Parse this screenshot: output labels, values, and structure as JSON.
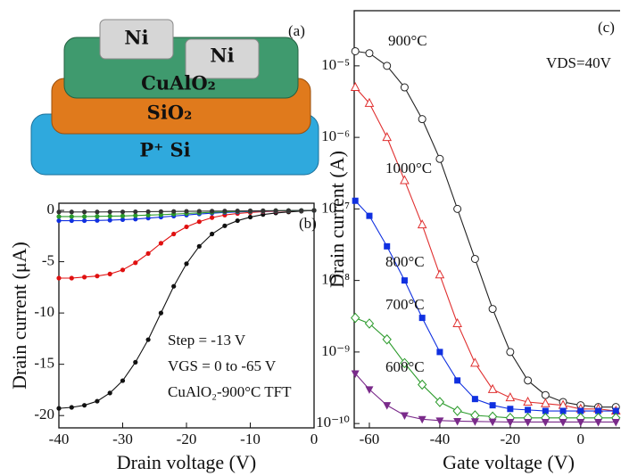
{
  "schematic": {
    "panel_label": "(a)",
    "layers": [
      "Ni",
      "Ni",
      "CuAlO₂",
      "SiO₂",
      "P⁺ Si"
    ]
  },
  "chart_data": [
    {
      "type": "line",
      "panel_label": "(b)",
      "x_label": "Drain voltage (V)",
      "y_label": "Drain current (μA)",
      "annotations": [
        "Step = -13 V",
        "VGS = 0 to -65 V",
        "CuAlO₂-900°C TFT"
      ],
      "x": [
        -40,
        -38,
        -36,
        -34,
        -32,
        -30,
        -28,
        -26,
        -24,
        -22,
        -20,
        -18,
        -16,
        -14,
        -12,
        -10,
        -8,
        -6,
        -4,
        -2,
        0
      ],
      "series": [
        {
          "color": "#111111",
          "marker": "dot",
          "values": [
            -19.3,
            -19.2,
            -19.0,
            -18.6,
            -17.8,
            -16.6,
            -14.8,
            -12.6,
            -10.0,
            -7.4,
            -5.2,
            -3.5,
            -2.3,
            -1.5,
            -1.0,
            -0.65,
            -0.4,
            -0.25,
            -0.15,
            -0.07,
            0
          ]
        },
        {
          "color": "#e01010",
          "marker": "dot",
          "values": [
            -6.6,
            -6.6,
            -6.5,
            -6.4,
            -6.2,
            -5.8,
            -5.1,
            -4.2,
            -3.2,
            -2.3,
            -1.6,
            -1.1,
            -0.7,
            -0.45,
            -0.3,
            -0.2,
            -0.12,
            -0.08,
            -0.05,
            -0.02,
            0
          ]
        },
        {
          "color": "#1030e0",
          "marker": "dot",
          "values": [
            -1.0,
            -1.0,
            -1.0,
            -0.98,
            -0.95,
            -0.9,
            -0.85,
            -0.75,
            -0.65,
            -0.55,
            -0.45,
            -0.35,
            -0.27,
            -0.2,
            -0.15,
            -0.1,
            -0.07,
            -0.05,
            -0.03,
            -0.01,
            0
          ]
        },
        {
          "color": "#2a9a2a",
          "marker": "dot",
          "values": [
            -0.6,
            -0.6,
            -0.6,
            -0.58,
            -0.56,
            -0.54,
            -0.5,
            -0.46,
            -0.42,
            -0.36,
            -0.3,
            -0.24,
            -0.18,
            -0.14,
            -0.1,
            -0.07,
            -0.05,
            -0.03,
            -0.02,
            -0.01,
            0
          ]
        },
        {
          "color": "#333333",
          "marker": "dot",
          "values": [
            -0.15,
            -0.15,
            -0.15,
            -0.15,
            -0.14,
            -0.14,
            -0.13,
            -0.12,
            -0.11,
            -0.1,
            -0.09,
            -0.08,
            -0.07,
            -0.06,
            -0.05,
            -0.04,
            -0.03,
            -0.02,
            -0.01,
            -0.01,
            0
          ]
        }
      ],
      "xlim": [
        -40,
        0
      ],
      "xticks": [
        -40,
        -30,
        -20,
        -10,
        0
      ],
      "ylim": [
        -21.2,
        0.7
      ],
      "yticks": [
        -20,
        -15,
        -10,
        -5,
        0
      ],
      "log_y": false
    },
    {
      "type": "line",
      "panel_label": "(c)",
      "x_label": "Gate voltage (V)",
      "y_label": "Drain current (A)",
      "annotations": [
        "VDS=40V"
      ],
      "x": [
        -64,
        -60,
        -55,
        -50,
        -45,
        -40,
        -35,
        -30,
        -25,
        -20,
        -15,
        -10,
        -5,
        0,
        5,
        10
      ],
      "series": [
        {
          "name": "900°C",
          "color": "#222222",
          "marker": "circle",
          "values": [
            1.6e-05,
            1.5e-05,
            1e-05,
            5e-06,
            1.8e-06,
            5e-07,
            1e-07,
            2e-08,
            4e-09,
            1e-09,
            4e-10,
            2.5e-10,
            2e-10,
            1.8e-10,
            1.7e-10,
            1.7e-10
          ]
        },
        {
          "name": "1000°C",
          "color": "#e03030",
          "marker": "triangle",
          "values": [
            5e-06,
            3e-06,
            1e-06,
            2.5e-07,
            6e-08,
            1.2e-08,
            2.5e-09,
            7e-10,
            3e-10,
            2.3e-10,
            2e-10,
            1.9e-10,
            1.8e-10,
            1.6e-10,
            1.6e-10,
            1.5e-10
          ]
        },
        {
          "name": "800°C",
          "color": "#1030e0",
          "marker": "square",
          "values": [
            1.3e-07,
            8e-08,
            3e-08,
            1e-08,
            3e-09,
            1e-09,
            4e-10,
            2.2e-10,
            1.8e-10,
            1.6e-10,
            1.55e-10,
            1.5e-10,
            1.5e-10,
            1.5e-10,
            1.5e-10,
            1.5e-10
          ]
        },
        {
          "name": "700°C",
          "color": "#2a9a2a",
          "marker": "diamond",
          "values": [
            3e-09,
            2.5e-09,
            1.5e-09,
            7e-10,
            3.5e-10,
            2e-10,
            1.5e-10,
            1.3e-10,
            1.25e-10,
            1.2e-10,
            1.2e-10,
            1.2e-10,
            1.2e-10,
            1.2e-10,
            1.2e-10,
            1.2e-10
          ]
        },
        {
          "name": "600°C",
          "color": "#7a2a8a",
          "marker": "tri-down",
          "values": [
            5e-10,
            3e-10,
            1.8e-10,
            1.3e-10,
            1.15e-10,
            1.1e-10,
            1.08e-10,
            1.07e-10,
            1.06e-10,
            1.05e-10,
            1.05e-10,
            1.05e-10,
            1.05e-10,
            1.05e-10,
            1.05e-10,
            1.05e-10
          ]
        }
      ],
      "xlim": [
        -64.3,
        11.2
      ],
      "xticks": [
        -60,
        -40,
        -20,
        0
      ],
      "ylim": [
        8.7e-11,
        5.9e-05
      ],
      "log_y": true,
      "yticks": [
        {
          "value": 1e-05,
          "label": "10⁻⁵"
        },
        {
          "value": 1e-06,
          "label": "10⁻⁶"
        },
        {
          "value": 1e-07,
          "label": "10⁻⁷"
        },
        {
          "value": 1e-08,
          "label": "10⁻⁸"
        },
        {
          "value": 1e-09,
          "label": "10⁻⁹"
        },
        {
          "value": 1e-10,
          "label": "10⁻¹⁰"
        }
      ]
    }
  ]
}
